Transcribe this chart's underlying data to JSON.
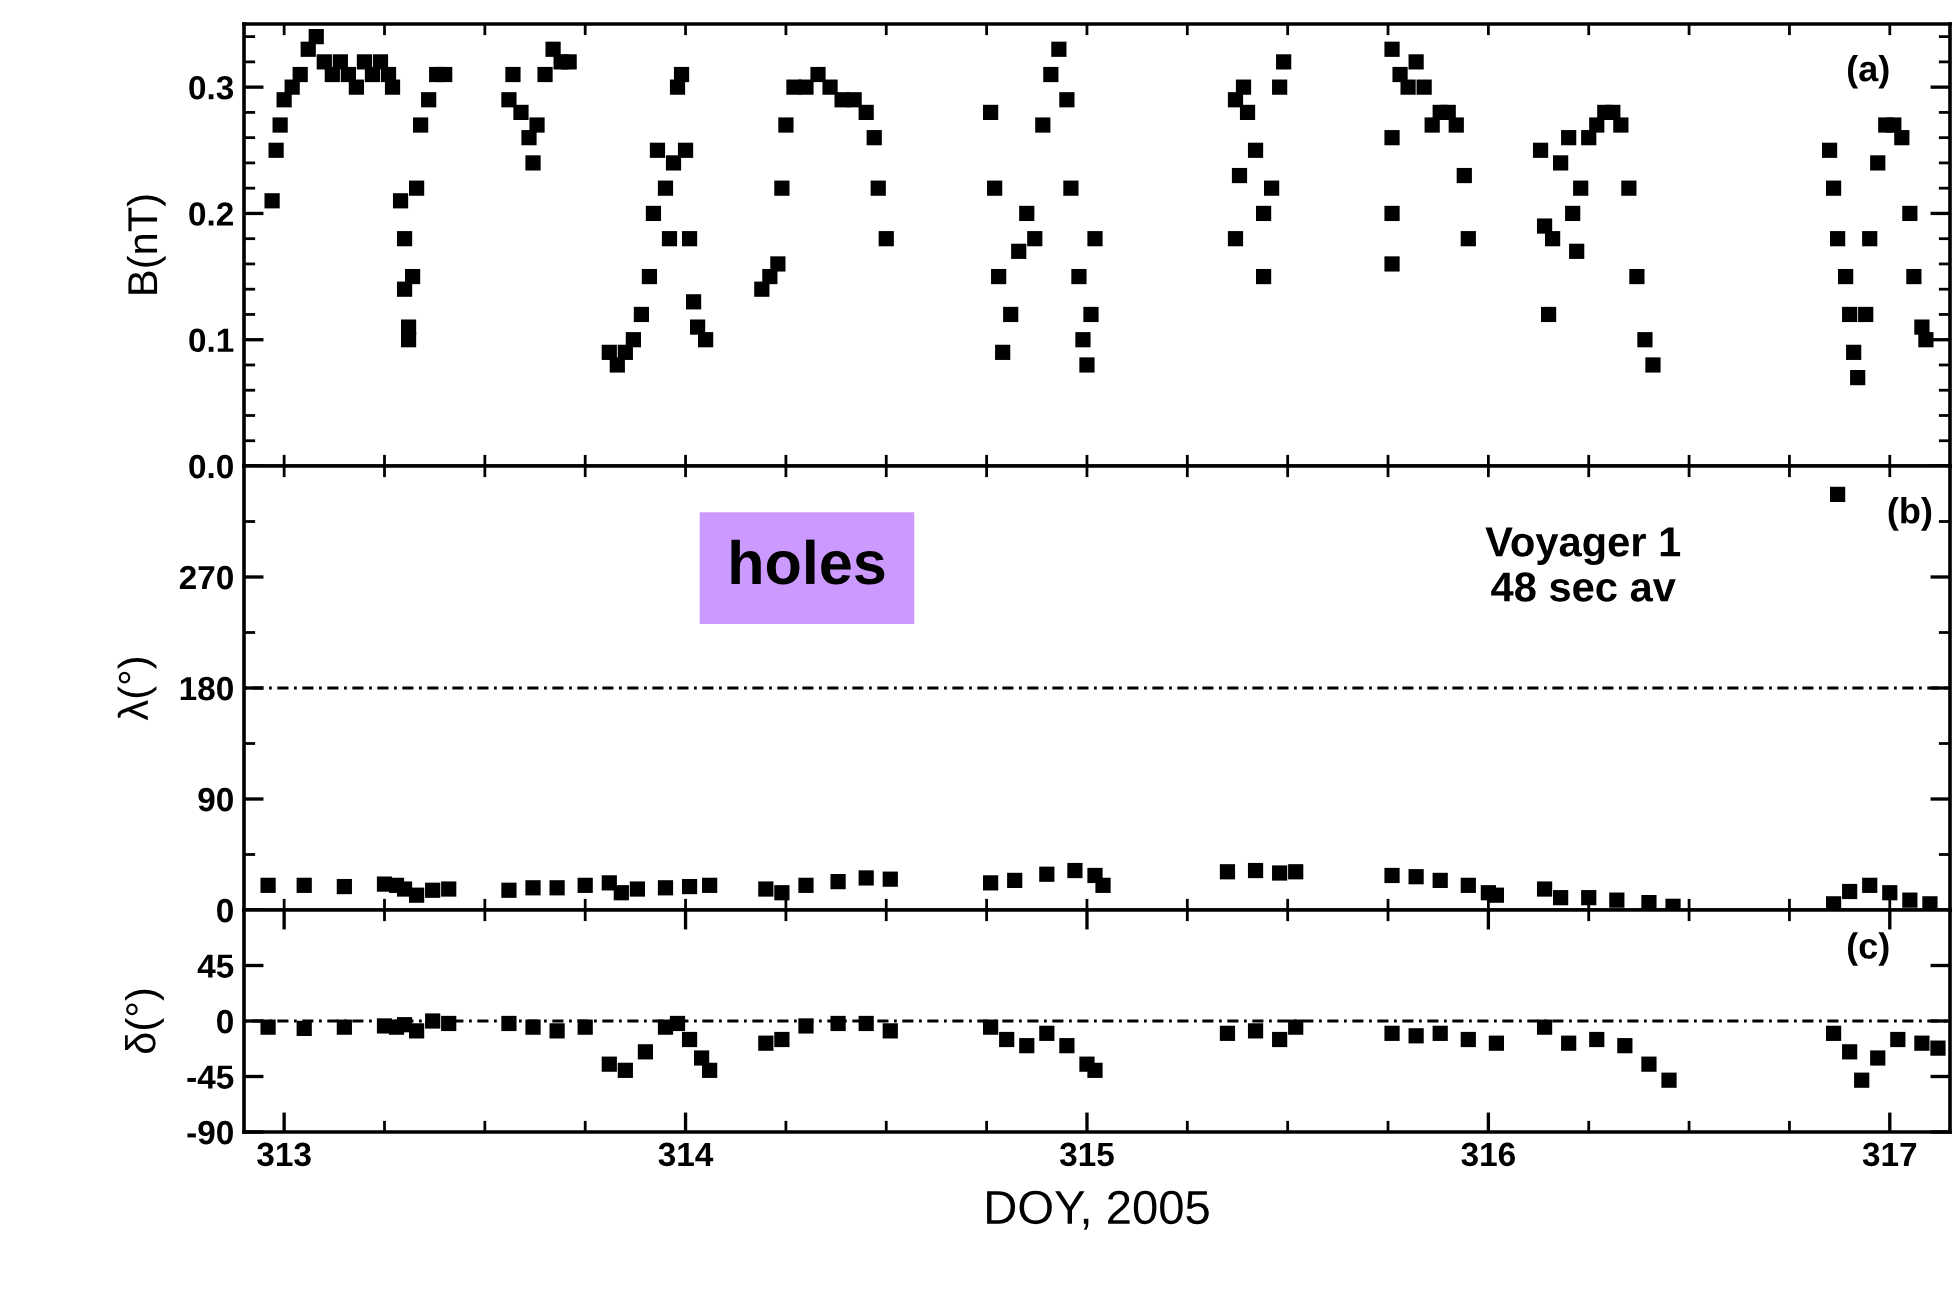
{
  "chart_data": [
    {
      "type": "scatter",
      "ylabel": "B(nT)",
      "xlim": [
        312.9,
        317.15
      ],
      "ylim": [
        0,
        0.35
      ],
      "tick_labels": "y",
      "marker": "square",
      "xticks": [
        {
          "value": 313,
          "label": null
        },
        {
          "value": 313.25,
          "label": null
        },
        {
          "value": 313.5,
          "label": null
        },
        {
          "value": 313.75,
          "label": null
        },
        {
          "value": 314,
          "label": null
        },
        {
          "value": 314.25,
          "label": null
        },
        {
          "value": 314.5,
          "label": null
        },
        {
          "value": 314.75,
          "label": null
        },
        {
          "value": 315,
          "label": null
        },
        {
          "value": 315.25,
          "label": null
        },
        {
          "value": 315.5,
          "label": null
        },
        {
          "value": 315.75,
          "label": null
        },
        {
          "value": 316,
          "label": null
        },
        {
          "value": 316.25,
          "label": null
        },
        {
          "value": 316.5,
          "label": null
        },
        {
          "value": 316.75,
          "label": null
        },
        {
          "value": 317,
          "label": null
        }
      ],
      "yticks": [
        {
          "value": 0,
          "label": "0.0"
        },
        {
          "value": 0.02,
          "label": null
        },
        {
          "value": 0.04,
          "label": null
        },
        {
          "value": 0.06,
          "label": null
        },
        {
          "value": 0.08,
          "label": null
        },
        0.1,
        {
          "value": 0.12,
          "label": null
        },
        {
          "value": 0.14,
          "label": null
        },
        {
          "value": 0.16,
          "label": null
        },
        {
          "value": 0.18,
          "label": null
        },
        0.2,
        {
          "value": 0.22,
          "label": null
        },
        {
          "value": 0.24,
          "label": null
        },
        {
          "value": 0.26,
          "label": null
        },
        {
          "value": 0.28,
          "label": null
        },
        0.3,
        {
          "value": 0.32,
          "label": null
        },
        {
          "value": 0.34,
          "label": null
        }
      ],
      "annotations": [
        "(a)"
      ],
      "series": [
        {
          "color": "#000000",
          "x": [
            312.97,
            312.98,
            312.99,
            313.0,
            313.02,
            313.04,
            313.06,
            313.08,
            313.1,
            313.12,
            313.14,
            313.16,
            313.18,
            313.2,
            313.22,
            313.24,
            313.26,
            313.27,
            313.29,
            313.3,
            313.3,
            313.31,
            313.31,
            313.32,
            313.33,
            313.34,
            313.36,
            313.38,
            313.4,
            313.56,
            313.57,
            313.59,
            313.61,
            313.62,
            313.63,
            313.65,
            313.67,
            313.69,
            313.71,
            313.81,
            313.83,
            313.85,
            313.87,
            313.89,
            313.91,
            313.92,
            313.93,
            313.95,
            313.96,
            313.97,
            313.98,
            313.99,
            314.0,
            314.01,
            314.02,
            314.03,
            314.05,
            314.19,
            314.21,
            314.23,
            314.24,
            314.25,
            314.27,
            314.3,
            314.33,
            314.36,
            314.39,
            314.42,
            314.45,
            314.47,
            314.48,
            314.5,
            314.76,
            314.77,
            314.78,
            314.79,
            314.81,
            314.83,
            314.85,
            314.87,
            314.89,
            314.91,
            314.93,
            314.95,
            314.96,
            314.98,
            314.99,
            315.0,
            315.01,
            315.02,
            315.37,
            315.39,
            315.4,
            315.38,
            315.37,
            315.42,
            315.44,
            315.44,
            315.46,
            315.48,
            315.49,
            315.76,
            315.76,
            315.76,
            315.76,
            315.78,
            315.8,
            315.82,
            315.84,
            315.86,
            315.88,
            315.9,
            315.92,
            315.94,
            315.95,
            316.13,
            316.14,
            316.15,
            316.16,
            316.18,
            316.2,
            316.21,
            316.22,
            316.23,
            316.25,
            316.27,
            316.29,
            316.31,
            316.33,
            316.35,
            316.37,
            316.39,
            316.41,
            316.85,
            316.86,
            316.87,
            316.89,
            316.9,
            316.91,
            316.92,
            316.94,
            316.95,
            316.97,
            316.99,
            317.01,
            317.03,
            317.05,
            317.06,
            317.08,
            317.09
          ],
          "values": [
            0.21,
            0.25,
            0.27,
            0.29,
            0.3,
            0.31,
            0.33,
            0.34,
            0.32,
            0.31,
            0.32,
            0.31,
            0.3,
            0.32,
            0.31,
            0.32,
            0.31,
            0.3,
            0.21,
            0.18,
            0.14,
            0.11,
            0.1,
            0.15,
            0.22,
            0.27,
            0.29,
            0.31,
            0.31,
            0.29,
            0.31,
            0.28,
            0.26,
            0.24,
            0.27,
            0.31,
            0.33,
            0.32,
            0.32,
            0.09,
            0.08,
            0.09,
            0.1,
            0.12,
            0.15,
            0.2,
            0.25,
            0.22,
            0.18,
            0.24,
            0.3,
            0.31,
            0.25,
            0.18,
            0.13,
            0.11,
            0.1,
            0.14,
            0.15,
            0.16,
            0.22,
            0.27,
            0.3,
            0.3,
            0.31,
            0.3,
            0.29,
            0.29,
            0.28,
            0.26,
            0.22,
            0.18,
            0.28,
            0.22,
            0.15,
            0.09,
            0.12,
            0.17,
            0.2,
            0.18,
            0.27,
            0.31,
            0.33,
            0.29,
            0.22,
            0.15,
            0.1,
            0.08,
            0.12,
            0.18,
            0.29,
            0.3,
            0.28,
            0.23,
            0.18,
            0.25,
            0.2,
            0.15,
            0.22,
            0.3,
            0.32,
            0.33,
            0.26,
            0.2,
            0.16,
            0.31,
            0.3,
            0.32,
            0.3,
            0.27,
            0.28,
            0.28,
            0.27,
            0.23,
            0.18,
            0.25,
            0.19,
            0.12,
            0.18,
            0.24,
            0.26,
            0.2,
            0.17,
            0.22,
            0.26,
            0.27,
            0.28,
            0.28,
            0.27,
            0.22,
            0.15,
            0.1,
            0.08,
            0.25,
            0.22,
            0.18,
            0.15,
            0.12,
            0.09,
            0.07,
            0.12,
            0.18,
            0.24,
            0.27,
            0.27,
            0.26,
            0.2,
            0.15,
            0.11,
            0.1
          ]
        }
      ]
    },
    {
      "type": "scatter",
      "ylabel": "λ(°)",
      "xlim": [
        312.9,
        317.15
      ],
      "ylim": [
        0,
        360
      ],
      "tick_labels": "y",
      "marker": "square",
      "xticks": [
        {
          "value": 313,
          "label": null
        },
        {
          "value": 313.25,
          "label": null
        },
        {
          "value": 313.5,
          "label": null
        },
        {
          "value": 313.75,
          "label": null
        },
        {
          "value": 314,
          "label": null
        },
        {
          "value": 314.25,
          "label": null
        },
        {
          "value": 314.5,
          "label": null
        },
        {
          "value": 314.75,
          "label": null
        },
        {
          "value": 315,
          "label": null
        },
        {
          "value": 315.25,
          "label": null
        },
        {
          "value": 315.5,
          "label": null
        },
        {
          "value": 315.75,
          "label": null
        },
        {
          "value": 316,
          "label": null
        },
        {
          "value": 316.25,
          "label": null
        },
        {
          "value": 316.5,
          "label": null
        },
        {
          "value": 316.75,
          "label": null
        },
        {
          "value": 317,
          "label": null
        }
      ],
      "yticks": [
        0,
        {
          "value": 45,
          "label": null
        },
        90,
        {
          "value": 135,
          "label": null
        },
        180,
        {
          "value": 225,
          "label": null
        },
        270,
        {
          "value": 315,
          "label": null
        }
      ],
      "ref_lines": [
        {
          "axis": "y",
          "value": 180,
          "line_style": "dotted",
          "color": "#000000"
        }
      ],
      "annotations": [
        "holes",
        "Voyager 1\n48 sec av",
        "(b)"
      ],
      "series": [
        {
          "color": "#000000",
          "x": [
            312.96,
            313.05,
            313.15,
            313.25,
            313.28,
            313.3,
            313.33,
            313.37,
            313.41,
            313.56,
            313.62,
            313.68,
            313.75,
            313.81,
            313.84,
            313.88,
            313.95,
            314.01,
            314.06,
            314.2,
            314.24,
            314.3,
            314.38,
            314.45,
            314.51,
            314.76,
            314.82,
            314.9,
            314.97,
            315.02,
            315.04,
            315.35,
            315.42,
            315.48,
            315.52,
            315.76,
            315.82,
            315.88,
            315.95,
            316.0,
            316.02,
            316.14,
            316.18,
            316.25,
            316.32,
            316.4,
            316.46,
            316.86,
            316.9,
            316.95,
            317.0,
            317.05,
            317.1,
            316.87
          ],
          "values": [
            20,
            20,
            19,
            21,
            20,
            17,
            12,
            16,
            17,
            16,
            18,
            18,
            20,
            22,
            14,
            17,
            18,
            19,
            20,
            17,
            14,
            20,
            23,
            26,
            25,
            22,
            24,
            29,
            32,
            28,
            20,
            31,
            32,
            30,
            31,
            28,
            27,
            24,
            20,
            14,
            12,
            17,
            10,
            10,
            8,
            6,
            3,
            5,
            15,
            20,
            14,
            8,
            5,
            337
          ]
        }
      ]
    },
    {
      "type": "scatter",
      "ylabel": "δ(°)",
      "xlabel": "DOY, 2005",
      "xlim": [
        312.9,
        317.15
      ],
      "ylim": [
        -90,
        90
      ],
      "marker": "square",
      "xticks": [
        313,
        {
          "value": 313.25,
          "label": null
        },
        {
          "value": 313.5,
          "label": null
        },
        {
          "value": 313.75,
          "label": null
        },
        314,
        {
          "value": 314.25,
          "label": null
        },
        {
          "value": 314.5,
          "label": null
        },
        {
          "value": 314.75,
          "label": null
        },
        315,
        {
          "value": 315.25,
          "label": null
        },
        {
          "value": 315.5,
          "label": null
        },
        {
          "value": 315.75,
          "label": null
        },
        316,
        {
          "value": 316.25,
          "label": null
        },
        {
          "value": 316.5,
          "label": null
        },
        {
          "value": 316.75,
          "label": null
        },
        317
      ],
      "yticks": [
        -90,
        -45,
        0,
        45
      ],
      "ref_lines": [
        {
          "axis": "y",
          "value": 0,
          "line_style": "dotted",
          "color": "#000000"
        }
      ],
      "annotations": [
        "(c)"
      ],
      "series": [
        {
          "color": "#000000",
          "x": [
            312.96,
            313.05,
            313.15,
            313.25,
            313.28,
            313.3,
            313.33,
            313.37,
            313.41,
            313.56,
            313.62,
            313.68,
            313.75,
            313.81,
            313.85,
            313.9,
            313.95,
            313.98,
            314.01,
            314.04,
            314.06,
            314.2,
            314.24,
            314.3,
            314.38,
            314.45,
            314.51,
            314.76,
            314.8,
            314.85,
            314.9,
            314.95,
            315.0,
            315.02,
            315.35,
            315.42,
            315.48,
            315.52,
            315.76,
            315.82,
            315.88,
            315.95,
            316.02,
            316.14,
            316.2,
            316.27,
            316.34,
            316.4,
            316.45,
            316.86,
            316.9,
            316.93,
            316.97,
            317.02,
            317.08,
            317.12
          ],
          "values": [
            -5,
            -6,
            -5,
            -4,
            -5,
            -3,
            -8,
            0,
            -2,
            -2,
            -5,
            -8,
            -5,
            -35,
            -40,
            -25,
            -5,
            -2,
            -15,
            -30,
            -40,
            -18,
            -15,
            -4,
            -2,
            -2,
            -8,
            -5,
            -15,
            -20,
            -10,
            -20,
            -35,
            -40,
            -10,
            -8,
            -15,
            -5,
            -10,
            -12,
            -10,
            -15,
            -18,
            -5,
            -18,
            -15,
            -20,
            -35,
            -48,
            -10,
            -25,
            -48,
            -30,
            -15,
            -18,
            -22
          ]
        }
      ]
    }
  ]
}
